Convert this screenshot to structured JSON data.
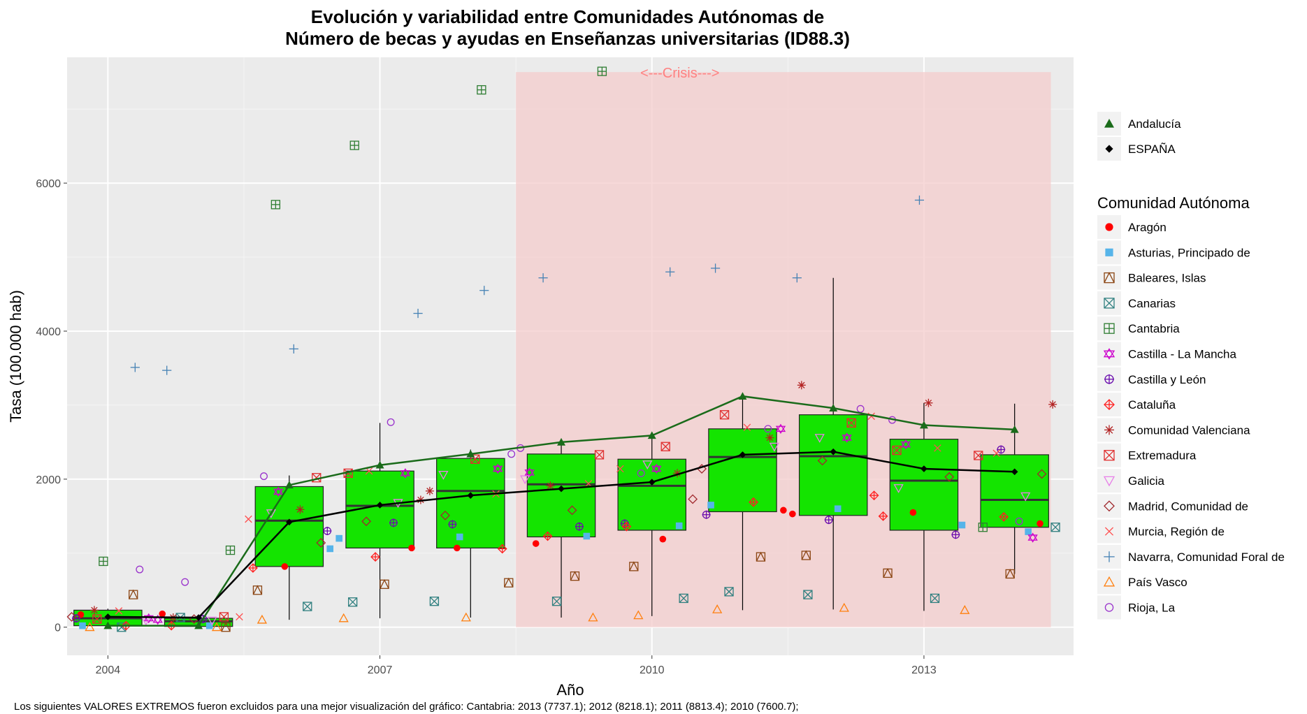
{
  "chart_data": {
    "type": "box",
    "title_line1": "Evolución y variabilidad entre Comunidades Autónomas de",
    "title_line2": "Número de becas y ayudas en Enseñanzas universitarias (ID88.3)",
    "xlabel": "Año",
    "ylabel": "Tasa (100.000 hab)",
    "caption": "Los siguientes VALORES EXTREMOS fueron excluidos para una mejor visualización del gráfico: Cantabria: 2013 (7737.1); 2012 (8218.1); 2011 (8813.4); 2010 (7600.7);",
    "xlim": [
      2003.55,
      2014.65
    ],
    "ylim": [
      -380,
      7700
    ],
    "x_ticks": [
      2004,
      2007,
      2010,
      2013
    ],
    "y_ticks": [
      0,
      2000,
      4000,
      6000
    ],
    "crisis": {
      "label": "<---Crisis--->",
      "x_start": 2008.5,
      "x_end": 2014.4,
      "y_top": 7500,
      "color": "#f4cccc"
    },
    "years": [
      2004,
      2005,
      2006,
      2007,
      2008,
      2009,
      2010,
      2011,
      2012,
      2013,
      2014
    ],
    "boxes": [
      {
        "year": 2004,
        "q1": 20,
        "median": 120,
        "q3": 230,
        "wlo": 0,
        "whi": 250
      },
      {
        "year": 2005,
        "q1": 10,
        "median": 80,
        "q3": 120,
        "wlo": 0,
        "whi": 150
      },
      {
        "year": 2006,
        "q1": 820,
        "median": 1440,
        "q3": 1900,
        "wlo": 100,
        "whi": 2050
      },
      {
        "year": 2007,
        "q1": 1070,
        "median": 1640,
        "q3": 2110,
        "wlo": 120,
        "whi": 2760
      },
      {
        "year": 2008,
        "q1": 1070,
        "median": 1840,
        "q3": 2280,
        "wlo": 130,
        "whi": 2400
      },
      {
        "year": 2009,
        "q1": 1220,
        "median": 1930,
        "q3": 2340,
        "wlo": 130,
        "whi": 2500
      },
      {
        "year": 2010,
        "q1": 1310,
        "median": 1910,
        "q3": 2270,
        "wlo": 150,
        "whi": 2600
      },
      {
        "year": 2011,
        "q1": 1560,
        "median": 2300,
        "q3": 2680,
        "wlo": 230,
        "whi": 3100
      },
      {
        "year": 2012,
        "q1": 1510,
        "median": 2310,
        "q3": 2870,
        "wlo": 240,
        "whi": 4720
      },
      {
        "year": 2013,
        "q1": 1310,
        "median": 1980,
        "q3": 2540,
        "wlo": 220,
        "whi": 3030
      },
      {
        "year": 2014,
        "q1": 1350,
        "median": 1720,
        "q3": 2330,
        "wlo": 720,
        "whi": 3020
      }
    ],
    "box_fill": "#14e400",
    "series": [
      {
        "name": "Andalucía",
        "color": "#1a6b1a",
        "shape": "triangle-filled",
        "values": [
          20,
          20,
          1920,
          2190,
          2340,
          2500,
          2590,
          3120,
          2960,
          2730,
          2670
        ]
      },
      {
        "name": "ESPAÑA",
        "color": "#000000",
        "shape": "diamond-filled",
        "values": [
          140,
          130,
          1420,
          1650,
          1780,
          1870,
          1960,
          2330,
          2370,
          2140,
          2100
        ]
      },
      {
        "name": "Aragón",
        "color": "#ff0000",
        "shape": "circle-filled",
        "values": [
          170,
          180,
          820,
          1070,
          1070,
          1130,
          1190,
          1580,
          1530,
          1550,
          1400
        ]
      },
      {
        "name": "Asturias, Principado de",
        "color": "#56b4e9",
        "shape": "square-filled",
        "values": [
          20,
          20,
          1060,
          1200,
          1220,
          1230,
          1370,
          1650,
          1600,
          1380,
          1290
        ]
      },
      {
        "name": "Baleares, Islas",
        "color": "#8b4513",
        "shape": "square-triangle",
        "values": [
          440,
          0,
          500,
          580,
          600,
          690,
          820,
          950,
          970,
          730,
          720
        ]
      },
      {
        "name": "Canarias",
        "color": "#2f7f7f",
        "shape": "square-x",
        "values": [
          0,
          130,
          280,
          340,
          350,
          350,
          390,
          480,
          440,
          390,
          1350
        ]
      },
      {
        "name": "Cantabria",
        "color": "#2e7d32",
        "shape": "square-plus",
        "values": [
          890,
          1040,
          5710,
          6510,
          7260,
          7510,
          null,
          null,
          null,
          null,
          1350
        ]
      },
      {
        "name": "Castilla - La Mancha",
        "color": "#cc00cc",
        "shape": "star-david",
        "values": [
          120,
          100,
          1830,
          2080,
          2140,
          2090,
          2140,
          2680,
          2560,
          2470,
          1210
        ]
      },
      {
        "name": "Castilla y León",
        "color": "#6a0dad",
        "shape": "circle-plus",
        "values": [
          120,
          110,
          1300,
          1410,
          1390,
          1360,
          1400,
          1520,
          1450,
          1250,
          2400
        ]
      },
      {
        "name": "Cataluña",
        "color": "#ff2020",
        "shape": "diamond-plus",
        "values": [
          20,
          20,
          800,
          950,
          1060,
          1230,
          1360,
          1690,
          1780,
          1500,
          1490
        ]
      },
      {
        "name": "Comunidad Valenciana",
        "color": "#b22222",
        "shape": "asterisk",
        "values": [
          230,
          130,
          1590,
          1720,
          1840,
          1910,
          2080,
          2560,
          3270,
          3030,
          3010
        ]
      },
      {
        "name": "Extremadura",
        "color": "#e03030",
        "shape": "square-x",
        "values": [
          110,
          140,
          2020,
          2080,
          2270,
          2330,
          2440,
          2870,
          2760,
          2390,
          2320
        ]
      },
      {
        "name": "Galicia",
        "color": "#e87fe8",
        "shape": "triangle-down",
        "values": [
          90,
          90,
          1540,
          1680,
          2060,
          2000,
          2200,
          2440,
          2560,
          1880,
          1770
        ]
      },
      {
        "name": "Madrid, Comunidad de",
        "color": "#a0282d",
        "shape": "diamond-open",
        "values": [
          140,
          110,
          1140,
          1430,
          1510,
          1580,
          1730,
          2140,
          2250,
          2030,
          2070
        ]
      },
      {
        "name": "Murcia, Región de",
        "color": "#ff5050",
        "shape": "x",
        "values": [
          220,
          140,
          1460,
          2110,
          1800,
          1940,
          2140,
          2700,
          2850,
          2420,
          2350
        ]
      },
      {
        "name": "Navarra, Comunidad Foral de",
        "color": "#4682b4",
        "shape": "plus",
        "values": [
          3510,
          3470,
          3760,
          4240,
          4550,
          4720,
          4800,
          4850,
          4720,
          5770,
          null
        ]
      },
      {
        "name": "País Vasco",
        "color": "#ff7f0e",
        "shape": "triangle-open",
        "values": [
          0,
          0,
          100,
          120,
          130,
          130,
          160,
          240,
          260,
          230,
          null
        ]
      },
      {
        "name": "Rioja, La",
        "color": "#9932cc",
        "shape": "circle-open",
        "values": [
          780,
          610,
          2040,
          2770,
          2340,
          2420,
          2080,
          2680,
          2950,
          2800,
          1430
        ]
      }
    ],
    "legend_main": [
      "Andalucía",
      "ESPAÑA"
    ],
    "legend_title": "Comunidad Autónoma",
    "panel_bg": "#ebebeb",
    "grid_color": "#ffffff"
  }
}
